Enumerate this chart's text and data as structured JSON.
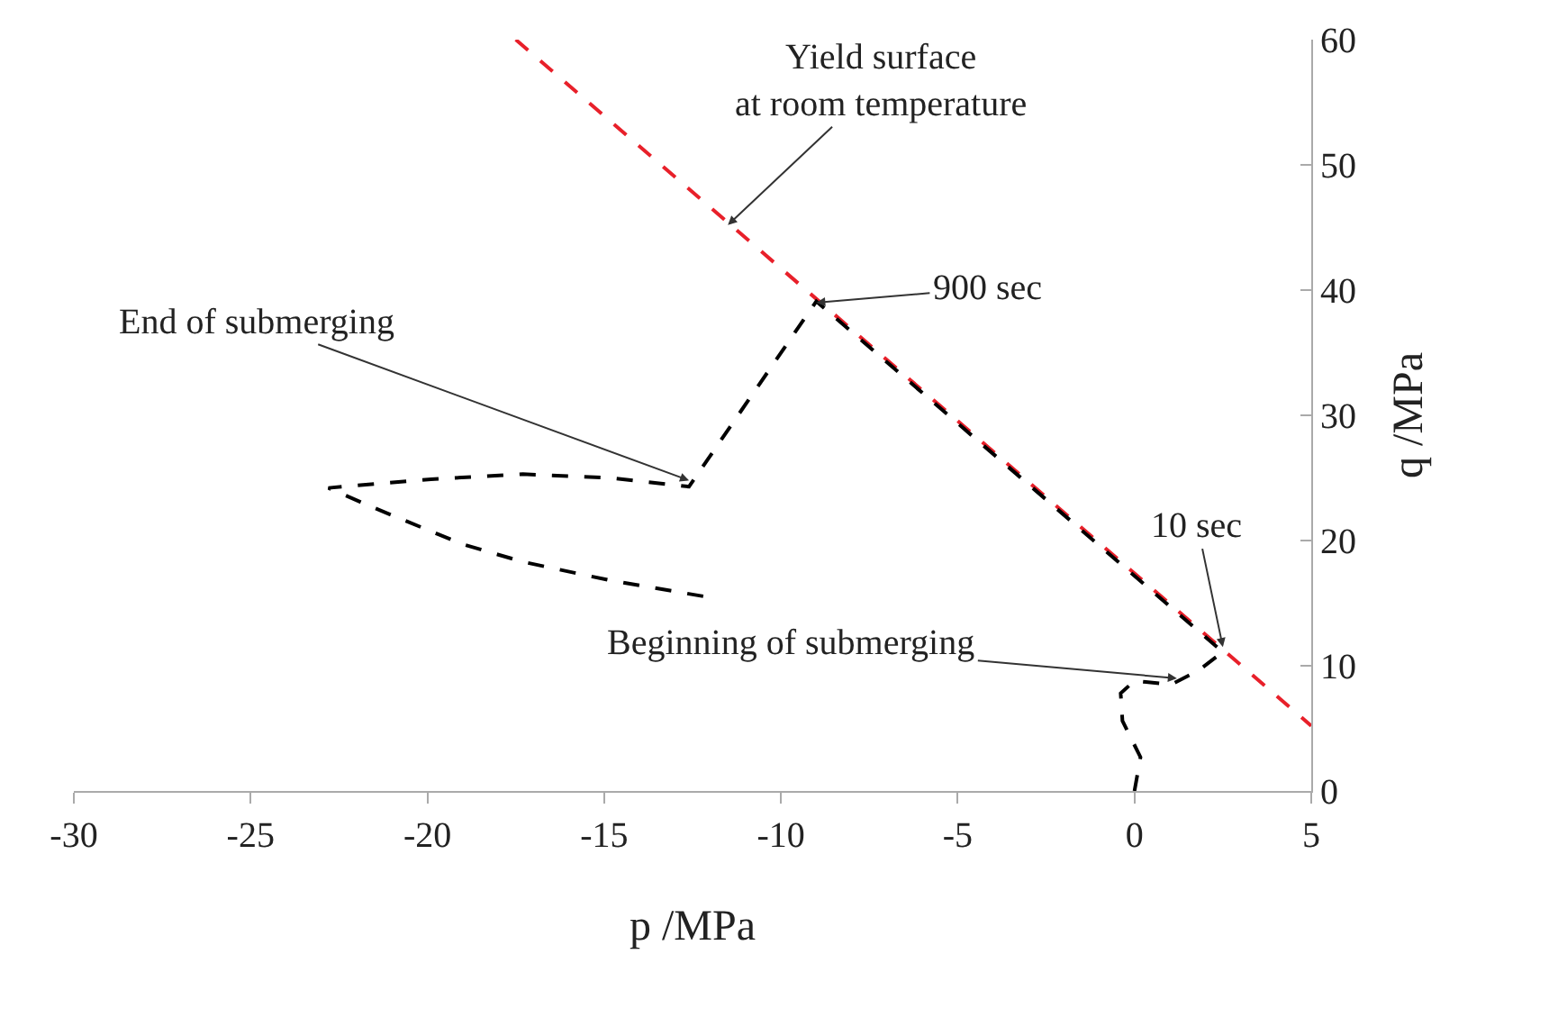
{
  "chart_data": {
    "type": "line",
    "xlabel": "p /MPa",
    "ylabel": "q /MPa",
    "xlim": [
      -30,
      5
    ],
    "xticks": [
      -30,
      -25,
      -20,
      -15,
      -10,
      -5,
      0,
      5
    ],
    "ylim": [
      0,
      60
    ],
    "yticks": [
      0,
      10,
      20,
      30,
      40,
      50,
      60
    ],
    "marker": "none",
    "series": [
      {
        "color": "#e8202a",
        "line_style": "dashed",
        "x": [
          -17.5,
          5
        ],
        "values": [
          60,
          5.2
        ]
      },
      {
        "color": "#000000",
        "line_style": "dashed",
        "x": [
          0,
          0.17,
          -0.34,
          -0.39,
          0,
          1.04,
          1.8,
          2.5,
          -9,
          -12.6,
          -14.8,
          -17.3,
          -19.9,
          -22.8,
          -21.5,
          -19.0,
          -17.3,
          -14.8,
          -12.1
        ],
        "values": [
          0,
          2.7,
          5.6,
          7.8,
          8.8,
          8.5,
          9.6,
          11.1,
          39.1,
          24.3,
          25.0,
          25.3,
          24.9,
          24.2,
          22.6,
          19.7,
          18.3,
          16.8,
          15.5
        ]
      }
    ],
    "annotations": [
      {
        "text": "Yield surface\nat room temperature",
        "x": -11.5,
        "y": 45.2
      },
      {
        "text": "900 sec",
        "x": -9,
        "y": 39
      },
      {
        "text": "End of submerging",
        "x": -12.6,
        "y": 24.8
      },
      {
        "text": "10 sec",
        "x": 2.5,
        "y": 11.5
      },
      {
        "text": "Beginning of submerging",
        "x": 1.2,
        "y": 9
      }
    ]
  }
}
